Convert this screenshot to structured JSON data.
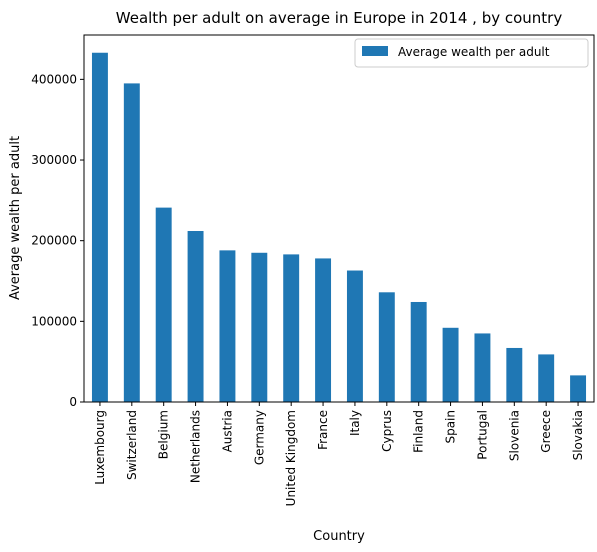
{
  "chart_data": {
    "type": "bar",
    "title": "Wealth per adult on average in Europe in 2014 , by country",
    "xlabel": "Country",
    "ylabel": "Average wealth per adult",
    "legend": {
      "position": "top-right",
      "entries": [
        "Average wealth per adult"
      ]
    },
    "grid": false,
    "ylim": [
      0,
      455000
    ],
    "yticks": [
      0,
      100000,
      200000,
      300000,
      400000
    ],
    "ytick_labels": [
      "0",
      "100000",
      "200000",
      "300000",
      "400000"
    ],
    "categories": [
      "Luxembourg",
      "Switzerland",
      "Belgium",
      "Netherlands",
      "Austria",
      "Germany",
      "United Kingdom",
      "France",
      "Italy",
      "Cyprus",
      "Finland",
      "Spain",
      "Portugal",
      "Slovenia",
      "Greece",
      "Slovakia"
    ],
    "series": [
      {
        "name": "Average wealth per adult",
        "color": "#1f77b4",
        "values": [
          433000,
          395000,
          241000,
          212000,
          188000,
          185000,
          183000,
          178000,
          163000,
          136000,
          124000,
          92000,
          85000,
          67000,
          59000,
          33000
        ]
      }
    ]
  }
}
